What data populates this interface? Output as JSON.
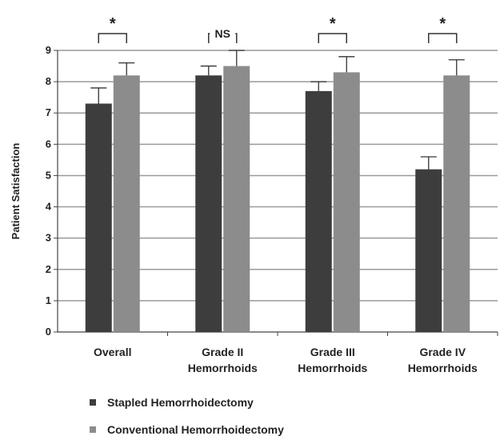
{
  "chart_data": {
    "type": "bar",
    "ylabel": "Patient Satisfaction",
    "ylim": [
      0,
      9
    ],
    "yticks": [
      "0",
      "1",
      "2",
      "3",
      "4",
      "5",
      "6",
      "7",
      "8",
      "9"
    ],
    "grid": true,
    "categories": [
      [
        "Overall"
      ],
      [
        "Grade II",
        "Hemorrhoids"
      ],
      [
        "Grade III",
        "Hemorrhoids"
      ],
      [
        "Grade IV",
        "Hemorrhoids"
      ]
    ],
    "series": [
      {
        "name": "Stapled Hemorrhoidectomy",
        "color": "#3d3d3d",
        "values": [
          7.3,
          8.2,
          7.7,
          5.2
        ],
        "errors": [
          0.5,
          0.3,
          0.3,
          0.4
        ]
      },
      {
        "name": "Conventional Hemorrhoidectomy",
        "color": "#8c8c8c",
        "values": [
          8.2,
          8.5,
          8.3,
          8.2
        ],
        "errors": [
          0.4,
          0.5,
          0.5,
          0.5
        ]
      }
    ],
    "significance": [
      "*",
      "NS",
      "*",
      "*"
    ],
    "legend_position": "bottom-left"
  }
}
